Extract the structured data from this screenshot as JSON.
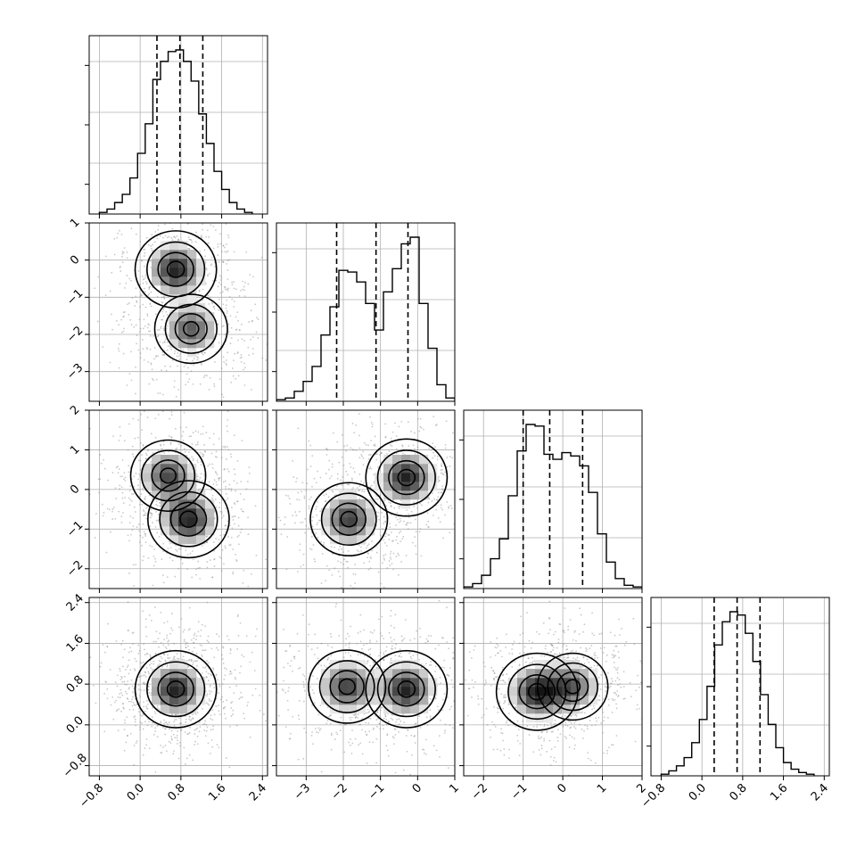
{
  "chart_data": {
    "type": "corner-plot",
    "grid": true,
    "params": [
      {
        "ticks": [
          "−0.8",
          "0.0",
          "0.8",
          "1.6",
          "2.4"
        ],
        "tick_values": [
          -0.8,
          0.0,
          0.8,
          1.6,
          2.4
        ],
        "range": [
          -1.0,
          2.5
        ]
      },
      {
        "ticks": [
          "−3",
          "−2",
          "−1",
          "0",
          "1"
        ],
        "tick_values": [
          -3,
          -2,
          -1,
          0,
          1
        ],
        "range": [
          -3.8,
          1.0
        ]
      },
      {
        "ticks": [
          "−2",
          "−1",
          "0",
          "1",
          "2"
        ],
        "tick_values": [
          -2,
          -1,
          0,
          1,
          2
        ],
        "range": [
          -2.5,
          2.0
        ]
      },
      {
        "ticks": [
          "−0.8",
          "0.0",
          "0.8",
          "1.6",
          "2.4"
        ],
        "tick_values": [
          -0.8,
          0.0,
          0.8,
          1.6,
          2.4
        ],
        "range": [
          -1.0,
          2.5
        ]
      }
    ],
    "histograms": [
      {
        "param": 0,
        "quantiles": [
          0.33,
          0.78,
          1.23
        ],
        "bin_edges": [
          -0.8,
          -0.65,
          -0.5,
          -0.35,
          -0.2,
          -0.05,
          0.1,
          0.25,
          0.4,
          0.55,
          0.7,
          0.85,
          1.0,
          1.15,
          1.3,
          1.45,
          1.6,
          1.75,
          1.9,
          2.05,
          2.2
        ],
        "counts": [
          0.01,
          0.03,
          0.07,
          0.12,
          0.22,
          0.37,
          0.55,
          0.82,
          0.93,
          0.99,
          1.0,
          0.93,
          0.81,
          0.61,
          0.43,
          0.26,
          0.15,
          0.07,
          0.03,
          0.01
        ]
      },
      {
        "param": 1,
        "quantiles": [
          -2.18,
          -1.12,
          -0.26
        ],
        "bin_edges": [
          -3.8,
          -3.56,
          -3.32,
          -3.08,
          -2.84,
          -2.6,
          -2.36,
          -2.12,
          -1.88,
          -1.64,
          -1.4,
          -1.16,
          -0.92,
          -0.68,
          -0.44,
          -0.2,
          0.04,
          0.28,
          0.52,
          0.76,
          1.0
        ],
        "counts": [
          0.01,
          0.02,
          0.06,
          0.12,
          0.21,
          0.4,
          0.57,
          0.79,
          0.78,
          0.72,
          0.59,
          0.43,
          0.66,
          0.8,
          0.95,
          0.99,
          0.59,
          0.32,
          0.1,
          0.02
        ]
      },
      {
        "param": 2,
        "quantiles": [
          -1.0,
          -0.33,
          0.5
        ],
        "bin_edges": [
          -2.5,
          -2.275,
          -2.05,
          -1.825,
          -1.6,
          -1.375,
          -1.15,
          -0.925,
          -0.7,
          -0.475,
          -0.25,
          -0.025,
          0.2,
          0.425,
          0.65,
          0.875,
          1.1,
          1.325,
          1.55,
          1.775,
          2.0
        ],
        "counts": [
          0.01,
          0.03,
          0.08,
          0.18,
          0.3,
          0.56,
          0.83,
          0.99,
          0.98,
          0.81,
          0.78,
          0.82,
          0.8,
          0.74,
          0.58,
          0.33,
          0.16,
          0.06,
          0.02,
          0.01
        ]
      },
      {
        "param": 3,
        "quantiles": [
          0.24,
          0.69,
          1.14
        ],
        "bin_edges": [
          -0.8,
          -0.65,
          -0.5,
          -0.35,
          -0.2,
          -0.05,
          0.1,
          0.25,
          0.4,
          0.55,
          0.7,
          0.85,
          1.0,
          1.15,
          1.3,
          1.45,
          1.6,
          1.75,
          1.9,
          2.05,
          2.2
        ],
        "counts": [
          0.01,
          0.03,
          0.06,
          0.11,
          0.2,
          0.34,
          0.54,
          0.79,
          0.93,
          0.99,
          0.97,
          0.86,
          0.69,
          0.49,
          0.31,
          0.17,
          0.08,
          0.04,
          0.02,
          0.01
        ]
      }
    ],
    "contour_panels": [
      {
        "x_param": 0,
        "y_param": 1,
        "modes": [
          {
            "x": 0.7,
            "y": -0.25,
            "weight": 1.0
          },
          {
            "x": 1.0,
            "y": -1.85,
            "weight": 0.8
          }
        ]
      },
      {
        "x_param": 0,
        "y_param": 2,
        "modes": [
          {
            "x": 0.55,
            "y": 0.35,
            "weight": 0.85
          },
          {
            "x": 0.95,
            "y": -0.75,
            "weight": 1.0
          }
        ]
      },
      {
        "x_param": 1,
        "y_param": 2,
        "modes": [
          {
            "x": -1.85,
            "y": -0.75,
            "weight": 0.9
          },
          {
            "x": -0.3,
            "y": 0.3,
            "weight": 1.0
          }
        ]
      },
      {
        "x_param": 0,
        "y_param": 3,
        "modes": [
          {
            "x": 0.7,
            "y": 0.7,
            "weight": 1.0
          }
        ]
      },
      {
        "x_param": 1,
        "y_param": 3,
        "modes": [
          {
            "x": -1.9,
            "y": 0.75,
            "weight": 0.9
          },
          {
            "x": -0.3,
            "y": 0.7,
            "weight": 1.0
          }
        ]
      },
      {
        "x_param": 2,
        "y_param": 3,
        "modes": [
          {
            "x": -0.65,
            "y": 0.65,
            "weight": 1.0
          },
          {
            "x": 0.25,
            "y": 0.75,
            "weight": 0.75
          }
        ]
      }
    ]
  }
}
